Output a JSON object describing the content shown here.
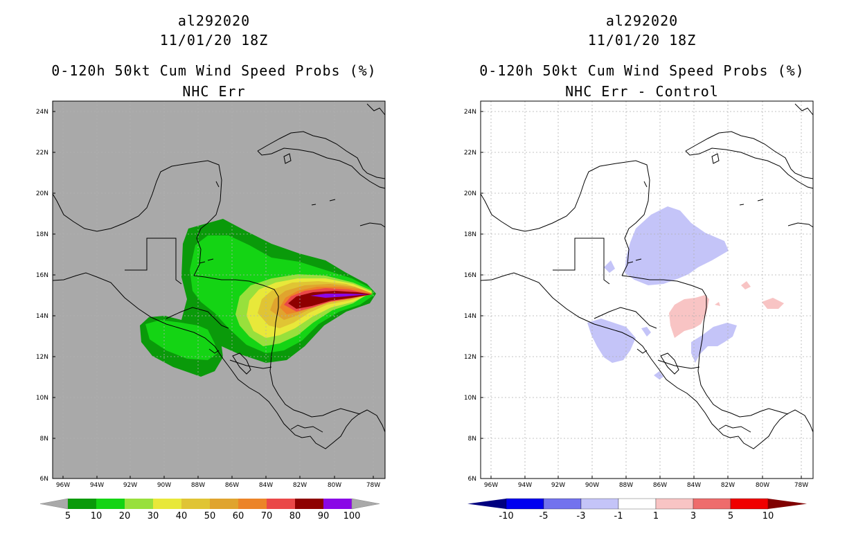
{
  "left_panel": {
    "storm_id": "al292020",
    "datetime": "11/01/20 18Z",
    "product": "0-120h 50kt Cum Wind Speed Probs (%)",
    "subtitle": "NHC Err",
    "background_color": "#a9a9a9",
    "colorbar": {
      "colors": [
        "#a9a9a9",
        "#0a9a0a",
        "#14d414",
        "#98e03c",
        "#e8e83a",
        "#e0c434",
        "#e0a42e",
        "#ec8428",
        "#ea4848",
        "#8e0000",
        "#8a08e6",
        "#a9a9a9"
      ],
      "labels": [
        "5",
        "10",
        "20",
        "30",
        "40",
        "50",
        "60",
        "70",
        "80",
        "90",
        "100"
      ]
    }
  },
  "right_panel": {
    "storm_id": "al292020",
    "datetime": "11/01/20 18Z",
    "product": "0-120h 50kt Cum Wind Speed Probs (%)",
    "subtitle": "NHC Err - Control",
    "background_color": "#ffffff",
    "colorbar": {
      "colors": [
        "#000080",
        "#0000f0",
        "#7272ee",
        "#c4c4f8",
        "#ffffff",
        "#f8c4c4",
        "#ee6c6c",
        "#f00000",
        "#800000"
      ],
      "labels": [
        "-10",
        "-5",
        "-3",
        "-1",
        "1",
        "3",
        "5",
        "10"
      ]
    }
  },
  "axes": {
    "lat_labels": [
      "24N",
      "22N",
      "20N",
      "18N",
      "16N",
      "14N",
      "12N",
      "10N",
      "8N",
      "6N"
    ],
    "lon_labels": [
      "96W",
      "94W",
      "92W",
      "90W",
      "88W",
      "86W",
      "84W",
      "82W",
      "80W",
      "78W"
    ]
  }
}
